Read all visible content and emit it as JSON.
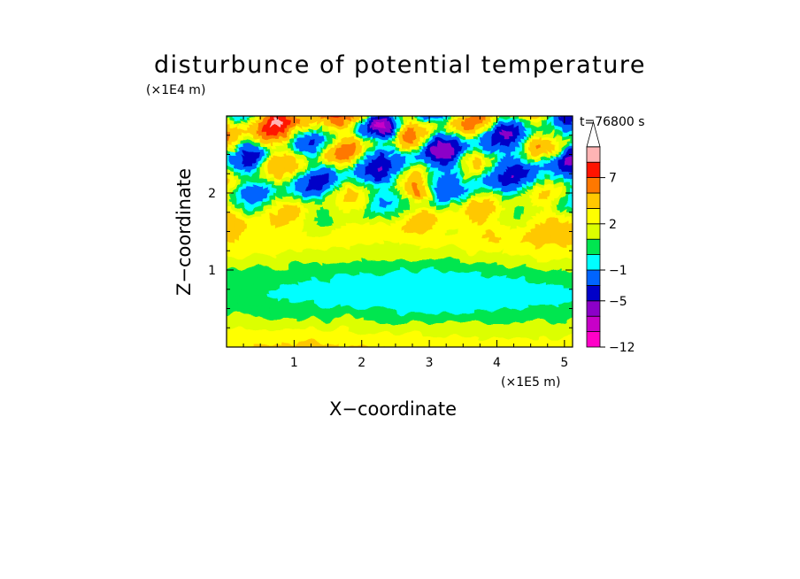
{
  "chart_data": {
    "type": "heatmap",
    "title": "disturbunce of potential temperature",
    "time_label": "t=76800 s",
    "xlabel": "X−coordinate",
    "ylabel": "Z−coordinate",
    "x_unit": "(×1E5 m)",
    "y_unit": "(×1E4 m)",
    "xlim": [
      0,
      5.12
    ],
    "ylim": [
      0,
      3.0
    ],
    "x_ticks": [
      "1",
      "2",
      "3",
      "4",
      "5"
    ],
    "y_ticks": [
      "1",
      "2"
    ],
    "colorbar": {
      "levels": [
        -12,
        -10,
        -7,
        -5,
        -3,
        -1,
        0,
        1,
        2,
        3,
        5,
        7,
        9,
        11
      ],
      "tick_labels": [
        "−12",
        "−5",
        "−1",
        "2",
        "7"
      ],
      "colors": [
        "#ff00c8",
        "#c800c8",
        "#8c00c8",
        "#0000c8",
        "#0064ff",
        "#00ffff",
        "#00e650",
        "#dcff00",
        "#ffff00",
        "#ffc800",
        "#ff7800",
        "#ff1400",
        "#ffb4b4",
        "#ffffff"
      ]
    },
    "grid": false
  }
}
